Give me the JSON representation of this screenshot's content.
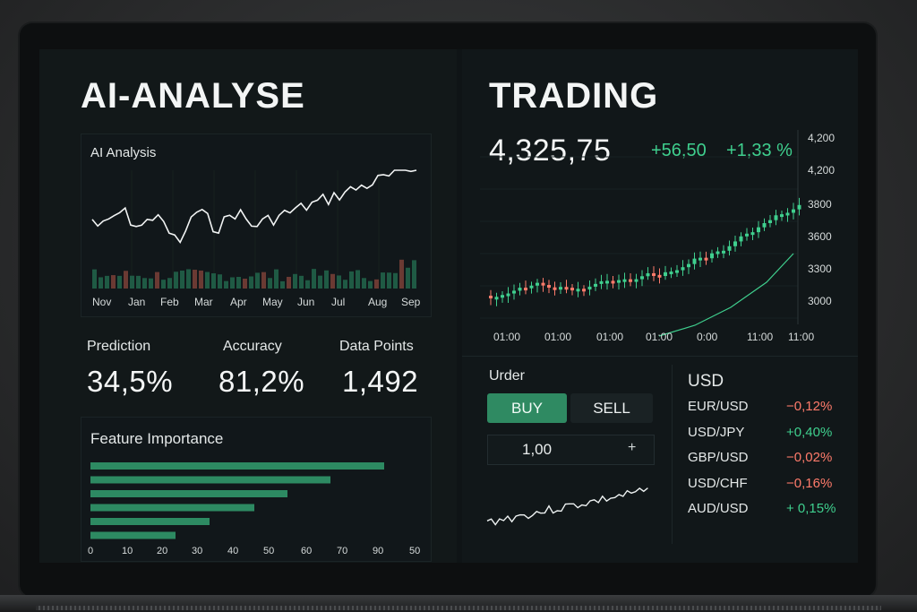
{
  "left_panel": {
    "title": "AI-ANALYSE",
    "ai_chart": {
      "title": "AI Analysis",
      "months": [
        "Nov",
        "Jan",
        "Feb",
        "Mar",
        "Apr",
        "May",
        "Jun",
        "Jul",
        "Aug",
        "Sep"
      ]
    },
    "stats": [
      {
        "label": "Prediction",
        "value": "34,5%"
      },
      {
        "label": "Accuracy",
        "value": "81,2%"
      },
      {
        "label": "Data Points",
        "value": "1,492"
      }
    ],
    "feature_importance": {
      "title": "Feature Importance",
      "x_ticks": [
        "0",
        "10",
        "20",
        "30",
        "40",
        "50",
        "60",
        "70",
        "90",
        "50"
      ],
      "bar_color": "#2d8a62"
    }
  },
  "right_panel": {
    "title": "TRADING",
    "price": "4,325,75",
    "change_abs": "+56,50",
    "change_pct": "+1,33 %",
    "y_ticks": [
      "4,200",
      "4,200",
      "3800",
      "3600",
      "3300",
      "3000"
    ],
    "x_ticks": [
      "01:00",
      "01:00",
      "01:00",
      "01:00",
      "0:00",
      "11:00",
      "11:00"
    ],
    "order": {
      "title": "Urder",
      "buy_label": "BUY",
      "sell_label": "SELL",
      "quantity": "1,00",
      "plus_icon": "plus-icon"
    },
    "currency": {
      "title": "USD",
      "pairs": [
        {
          "name": "EUR/USD",
          "change": "−0,12%",
          "dir": "down"
        },
        {
          "name": "USD/JPY",
          "change": "+0,40%",
          "dir": "up"
        },
        {
          "name": "GBP/USD",
          "change": "−0,02%",
          "dir": "down"
        },
        {
          "name": "USD/CHF",
          "change": "−0,16%",
          "dir": "down"
        },
        {
          "name": "AUD/USD",
          "change": "+ 0,15%",
          "dir": "up"
        }
      ]
    },
    "colors": {
      "up": "#3fcf8e",
      "down": "#ff7b6b"
    }
  }
}
